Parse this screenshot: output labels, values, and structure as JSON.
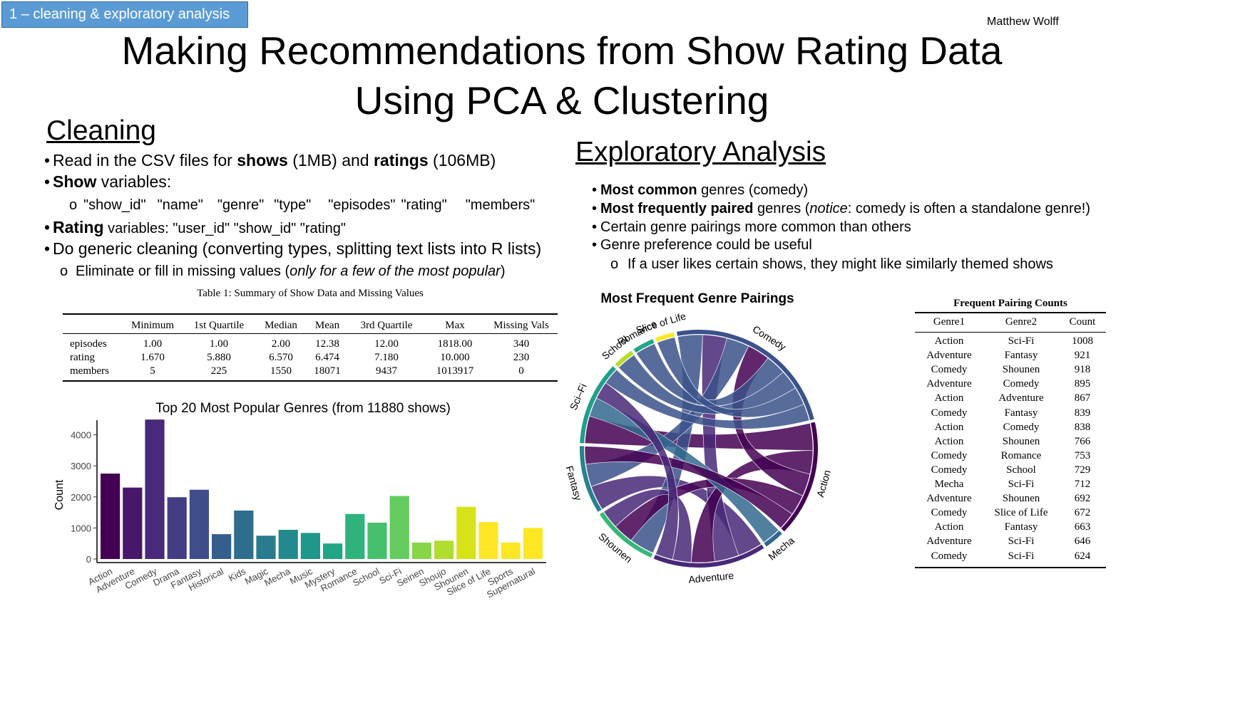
{
  "header": {
    "section_tag": "1 – cleaning & exploratory analysis",
    "author": "Matthew Wolff",
    "title_line1": "Making Recommendations from Show Rating Data",
    "title_line2": "Using PCA & Clustering"
  },
  "cleaning": {
    "heading": "Cleaning",
    "b1": {
      "p1": "Read in the CSV files for ",
      "s1": "shows",
      "p2": " (1MB) and ",
      "s2": "ratings",
      "p3": " (106MB)"
    },
    "b2": {
      "s1": "Show",
      "p1": " variables:"
    },
    "b2_vars": [
      "\"show_id\"",
      "\"name\"",
      "\"genre\"",
      "\"type\"",
      "\"episodes\"",
      "\"rating\"",
      "\"members\""
    ],
    "b3": {
      "s1": "Rating",
      "p1": " variables: \"user_id\"  \"show_id\" \"rating\""
    },
    "b4": "Do generic cleaning (converting types, splitting text lists into R lists)",
    "b4_sub": {
      "p1": "Eliminate or fill in missing values (",
      "i1": "only for a few of the most popular",
      "p2": ")"
    },
    "bullet_glyph": "•",
    "sub_glyph": "o"
  },
  "summary_table": {
    "caption": "Table 1: Summary of Show Data and Missing Values",
    "headers": [
      "",
      "Minimum",
      "1st Quartile",
      "Median",
      "Mean",
      "3rd Quartile",
      "Max",
      "Missing Vals"
    ],
    "rows": [
      [
        "episodes",
        "1.00",
        "1.00",
        "2.00",
        "12.38",
        "12.00",
        "1818.00",
        "340"
      ],
      [
        "rating",
        "1.670",
        "5.880",
        "6.570",
        "6.474",
        "7.180",
        "10.000",
        "230"
      ],
      [
        "members",
        "5",
        "225",
        "1550",
        "18071",
        "9437",
        "1013917",
        "0"
      ]
    ]
  },
  "chart_data": [
    {
      "type": "bar",
      "title": "Top 20 Most Popular Genres (from 11880 shows)",
      "xlabel": "",
      "ylabel": "Count",
      "ylim": [
        0,
        4700
      ],
      "yticks": [
        0,
        1000,
        2000,
        3000,
        4000
      ],
      "categories": [
        "Action",
        "Adventure",
        "Comedy",
        "Drama",
        "Fantasy",
        "Historical",
        "Kids",
        "Magic",
        "Mecha",
        "Music",
        "Mystery",
        "Romance",
        "School",
        "Sci-Fi",
        "Seinen",
        "Shoujo",
        "Shounen",
        "Slice of Life",
        "Sports",
        "Supernatural"
      ],
      "values": [
        2750,
        2300,
        4490,
        1990,
        2230,
        800,
        1560,
        750,
        940,
        840,
        500,
        1450,
        1170,
        2030,
        530,
        590,
        1680,
        1190,
        530,
        1000
      ],
      "colors": [
        "#440154",
        "#481769",
        "#472a7a",
        "#433d84",
        "#3d4e8a",
        "#355e8d",
        "#2e6d8e",
        "#297b8e",
        "#23898e",
        "#1f978b",
        "#21a585",
        "#2eb37c",
        "#46c06f",
        "#65cb5e",
        "#89d548",
        "#b0dd2f",
        "#d8e219",
        "#fde725",
        "#fde725",
        "#fde725"
      ],
      "grid": false,
      "legend": "none"
    },
    {
      "type": "chord",
      "title": "Most Frequent Genre Pairings",
      "categories": [
        "School",
        "Romance",
        "Slice of Life",
        "Comedy",
        "Action",
        "Mecha",
        "Adventure",
        "Shounen",
        "Fantasy",
        "Sci–Fi"
      ],
      "colors": [
        "#b5de2b",
        "#21a585",
        "#fde725",
        "#3b528b",
        "#440154",
        "#31688e",
        "#482878",
        "#35b779",
        "#26828e",
        "#1f9e89"
      ],
      "links": [
        {
          "source": "Action",
          "target": "Sci–Fi",
          "value": 1008
        },
        {
          "source": "Adventure",
          "target": "Fantasy",
          "value": 921
        },
        {
          "source": "Comedy",
          "target": "Shounen",
          "value": 918
        },
        {
          "source": "Adventure",
          "target": "Comedy",
          "value": 895
        },
        {
          "source": "Action",
          "target": "Adventure",
          "value": 867
        },
        {
          "source": "Comedy",
          "target": "Fantasy",
          "value": 839
        },
        {
          "source": "Action",
          "target": "Comedy",
          "value": 838
        },
        {
          "source": "Action",
          "target": "Shounen",
          "value": 766
        },
        {
          "source": "Comedy",
          "target": "Romance",
          "value": 753
        },
        {
          "source": "Comedy",
          "target": "School",
          "value": 729
        },
        {
          "source": "Mecha",
          "target": "Sci–Fi",
          "value": 712
        },
        {
          "source": "Adventure",
          "target": "Shounen",
          "value": 692
        },
        {
          "source": "Comedy",
          "target": "Slice of Life",
          "value": 672
        },
        {
          "source": "Action",
          "target": "Fantasy",
          "value": 663
        },
        {
          "source": "Adventure",
          "target": "Sci–Fi",
          "value": 646
        },
        {
          "source": "Comedy",
          "target": "Sci–Fi",
          "value": 624
        }
      ]
    }
  ],
  "exploratory": {
    "heading": "Exploratory Analysis",
    "b1": {
      "s1": "Most common",
      "p1": " genres (comedy)"
    },
    "b2": {
      "s1": "Most frequently paired",
      "p1": " genres (",
      "i1": "notice",
      "p2": ": comedy is often a standalone genre!)"
    },
    "b3": "Certain genre pairings more common than others",
    "b4": "Genre preference could be useful",
    "b4_sub": "If a user likes certain shows, they might like similarly themed shows"
  },
  "pairing_table": {
    "title": "Frequent Pairing Counts",
    "headers": [
      "Genre1",
      "Genre2",
      "Count"
    ],
    "rows": [
      [
        "Action",
        "Sci-Fi",
        "1008"
      ],
      [
        "Adventure",
        "Fantasy",
        "921"
      ],
      [
        "Comedy",
        "Shounen",
        "918"
      ],
      [
        "Adventure",
        "Comedy",
        "895"
      ],
      [
        "Action",
        "Adventure",
        "867"
      ],
      [
        "Comedy",
        "Fantasy",
        "839"
      ],
      [
        "Action",
        "Comedy",
        "838"
      ],
      [
        "Action",
        "Shounen",
        "766"
      ],
      [
        "Comedy",
        "Romance",
        "753"
      ],
      [
        "Comedy",
        "School",
        "729"
      ],
      [
        "Mecha",
        "Sci-Fi",
        "712"
      ],
      [
        "Adventure",
        "Shounen",
        "692"
      ],
      [
        "Comedy",
        "Slice of Life",
        "672"
      ],
      [
        "Action",
        "Fantasy",
        "663"
      ],
      [
        "Adventure",
        "Sci-Fi",
        "646"
      ],
      [
        "Comedy",
        "Sci-Fi",
        "624"
      ]
    ]
  }
}
